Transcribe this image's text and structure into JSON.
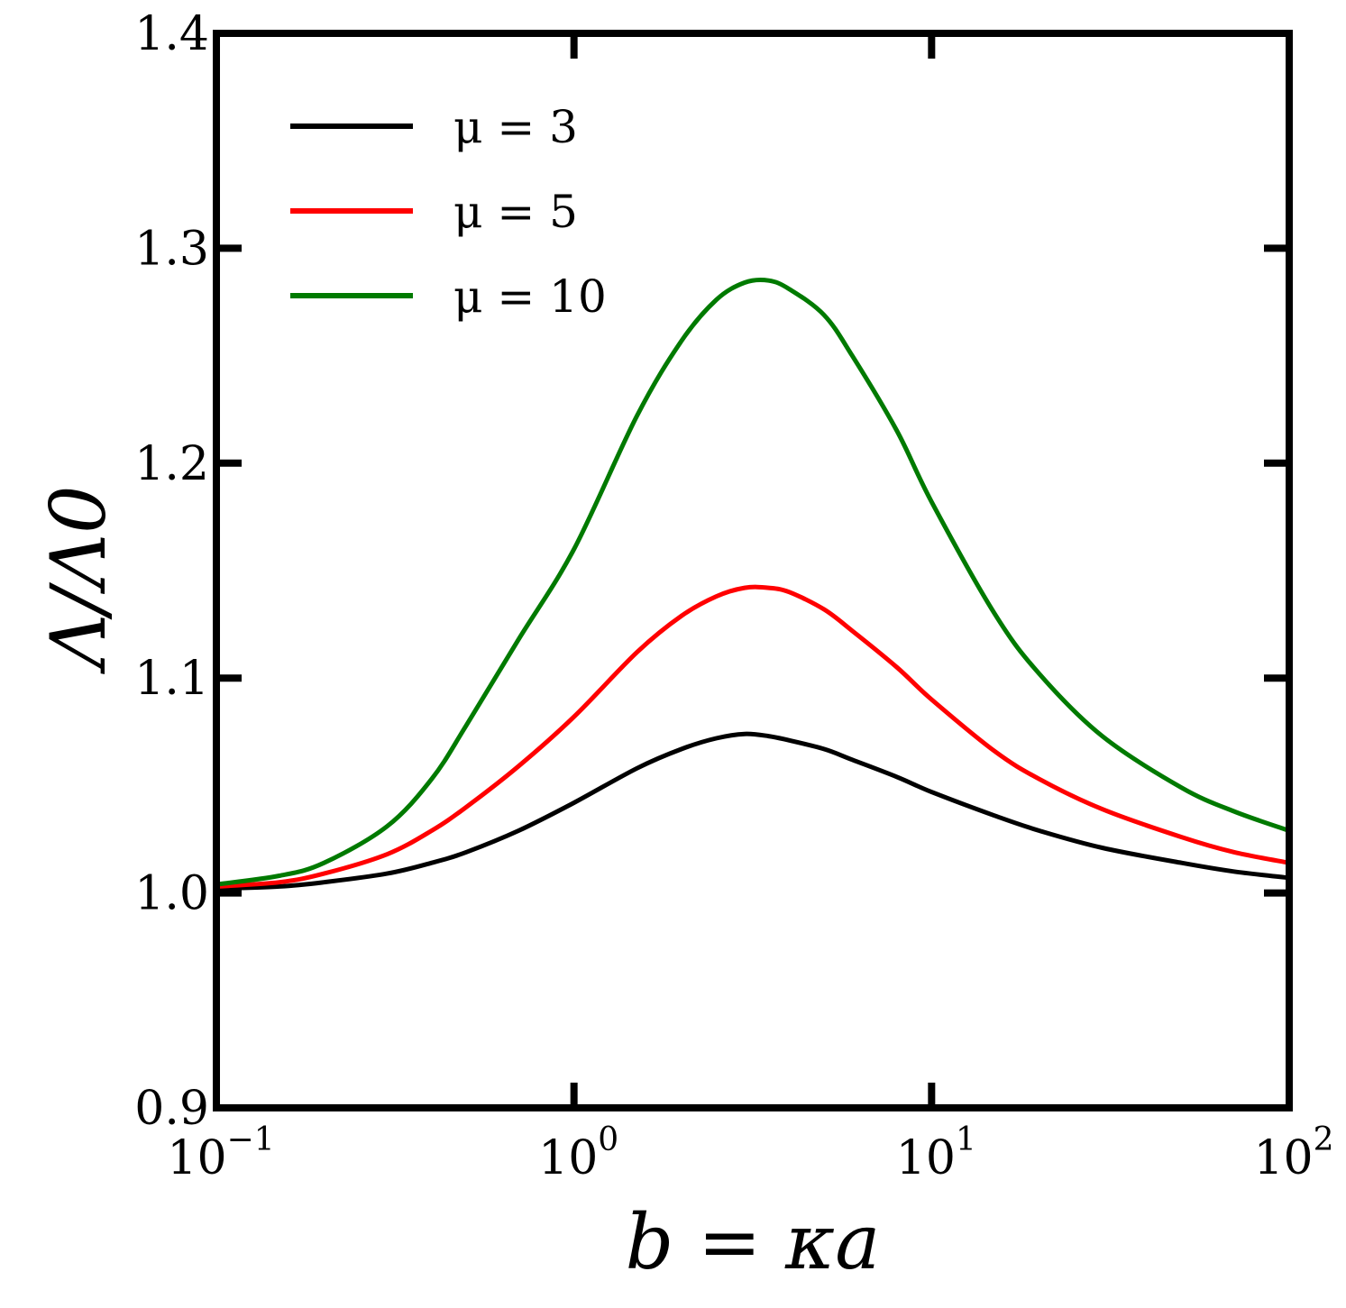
{
  "chart_data": {
    "type": "line",
    "xscale": "log",
    "xlim": [
      0.1,
      100
    ],
    "ylim": [
      0.9,
      1.4
    ],
    "xlabel": "b = κa",
    "ylabel": "Λ/Λ0",
    "x_ticks": [
      {
        "value": 0.1,
        "base": "10",
        "exp": "−1"
      },
      {
        "value": 1,
        "base": "10",
        "exp": "0"
      },
      {
        "value": 10,
        "base": "10",
        "exp": "1"
      },
      {
        "value": 100,
        "base": "10",
        "exp": "2"
      }
    ],
    "y_ticks": [
      {
        "value": 0.9,
        "label": "0.9"
      },
      {
        "value": 1.0,
        "label": "1.0"
      },
      {
        "value": 1.1,
        "label": "1.1"
      },
      {
        "value": 1.2,
        "label": "1.2"
      },
      {
        "value": 1.3,
        "label": "1.3"
      },
      {
        "value": 1.4,
        "label": "1.4"
      }
    ],
    "legend_position": "top-left",
    "series": [
      {
        "name": "μ = 3",
        "color": "#000000",
        "x": [
          0.1,
          0.15,
          0.2,
          0.3,
          0.4,
          0.5,
          0.7,
          1.0,
          1.5,
          2.0,
          2.5,
          3.0,
          3.5,
          4.0,
          5.0,
          6.0,
          8.0,
          10.0,
          15.0,
          20.0,
          30.0,
          50.0,
          70.0,
          100.0
        ],
        "y": [
          1.002,
          1.003,
          1.005,
          1.009,
          1.014,
          1.019,
          1.029,
          1.042,
          1.058,
          1.067,
          1.072,
          1.074,
          1.073,
          1.071,
          1.067,
          1.062,
          1.054,
          1.047,
          1.036,
          1.029,
          1.021,
          1.014,
          1.01,
          1.007
        ]
      },
      {
        "name": "μ = 5",
        "color": "#ff0000",
        "x": [
          0.1,
          0.15,
          0.2,
          0.3,
          0.4,
          0.5,
          0.7,
          1.0,
          1.5,
          2.0,
          2.5,
          3.0,
          3.5,
          4.0,
          5.0,
          6.0,
          8.0,
          10.0,
          15.0,
          20.0,
          30.0,
          50.0,
          70.0,
          100.0
        ],
        "y": [
          1.003,
          1.005,
          1.009,
          1.018,
          1.029,
          1.04,
          1.059,
          1.082,
          1.112,
          1.129,
          1.138,
          1.142,
          1.142,
          1.14,
          1.132,
          1.122,
          1.105,
          1.09,
          1.066,
          1.053,
          1.039,
          1.026,
          1.019,
          1.014
        ]
      },
      {
        "name": "μ = 10",
        "color": "#007a00",
        "x": [
          0.1,
          0.15,
          0.2,
          0.3,
          0.4,
          0.5,
          0.7,
          1.0,
          1.5,
          2.0,
          2.5,
          3.0,
          3.5,
          4.0,
          5.0,
          6.0,
          8.0,
          10.0,
          15.0,
          20.0,
          30.0,
          50.0,
          70.0,
          100.0
        ],
        "y": [
          1.004,
          1.008,
          1.014,
          1.031,
          1.053,
          1.078,
          1.118,
          1.16,
          1.222,
          1.257,
          1.276,
          1.284,
          1.285,
          1.281,
          1.269,
          1.25,
          1.215,
          1.182,
          1.13,
          1.102,
          1.073,
          1.049,
          1.038,
          1.029
        ]
      }
    ]
  }
}
